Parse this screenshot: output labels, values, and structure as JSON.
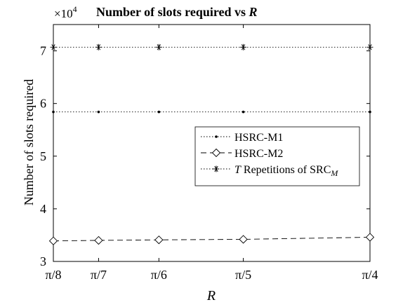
{
  "chart_data": {
    "type": "line",
    "title": "Number of slots required vs R",
    "title_main": "Number of slots required vs ",
    "title_var": "R",
    "xlabel": "R",
    "ylabel": "Number of slots required",
    "y_exponent_base": "×10",
    "y_exponent_power": "4",
    "x_tick_labels": [
      "π/8",
      "π/7",
      "π/6",
      "π/5",
      "π/4"
    ],
    "x_values": [
      0.3927,
      0.4488,
      0.5236,
      0.6283,
      0.7854
    ],
    "xlim": [
      0.3927,
      0.7854
    ],
    "ylim": [
      3,
      7.5
    ],
    "y_ticks": [
      3,
      4,
      5,
      6,
      7
    ],
    "y_tick_labels": [
      "3",
      "4",
      "5",
      "6",
      "7"
    ],
    "grid": false,
    "legend_position": "center-right",
    "series": [
      {
        "name": "HSRC-M1",
        "values": [
          5.84,
          5.84,
          5.84,
          5.84,
          5.84
        ],
        "line_style": "dotted",
        "marker": "dot",
        "legend_parts": [
          {
            "text": "HSRC-M1",
            "style": "normal"
          }
        ]
      },
      {
        "name": "HSRC-M2",
        "values": [
          3.39,
          3.4,
          3.41,
          3.42,
          3.46
        ],
        "line_style": "dashed",
        "marker": "diamond",
        "legend_parts": [
          {
            "text": "HSRC-M2",
            "style": "normal"
          }
        ]
      },
      {
        "name": "T Repetitions of SRC_M",
        "values": [
          7.07,
          7.07,
          7.07,
          7.07,
          7.07
        ],
        "line_style": "dotted",
        "marker": "asterisk",
        "legend_parts": [
          {
            "text": "T",
            "style": "italic"
          },
          {
            "text": " Repetitions of SRC",
            "style": "normal"
          },
          {
            "text": "M",
            "style": "italic-sub"
          }
        ]
      }
    ]
  }
}
